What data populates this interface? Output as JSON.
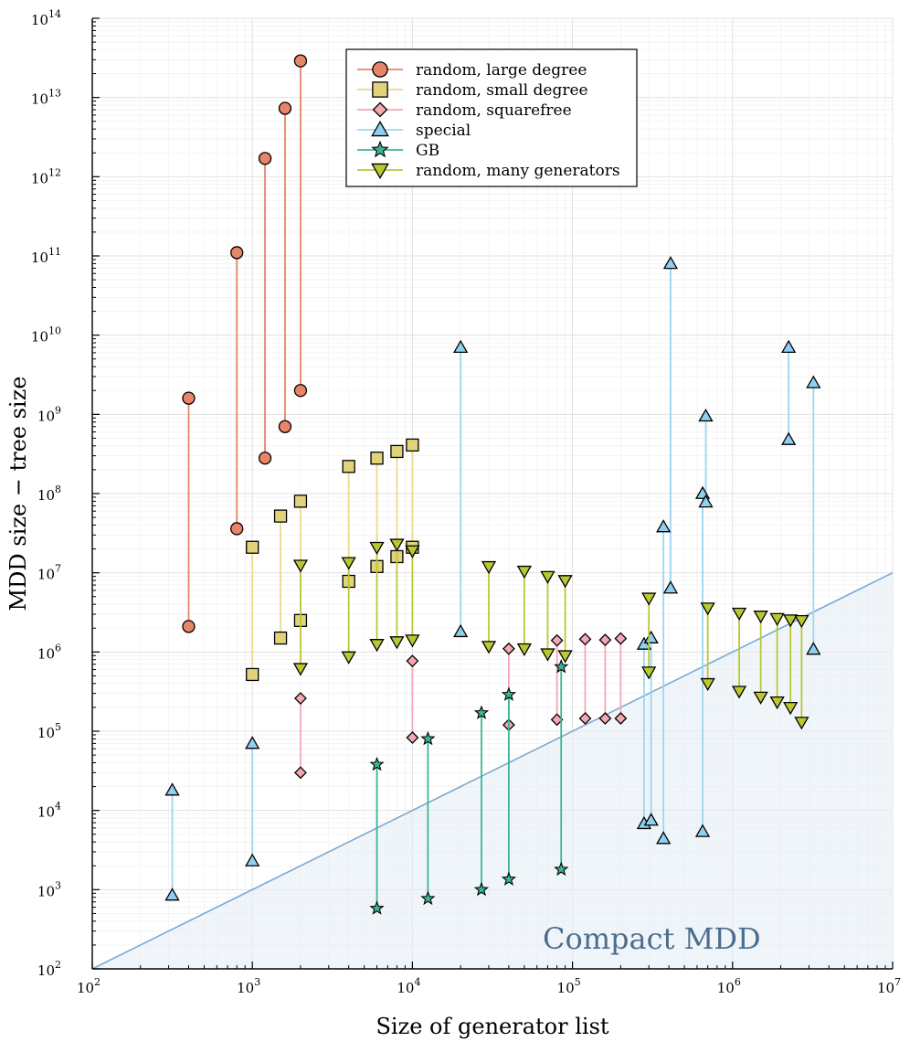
{
  "chart_data": {
    "type": "scatter",
    "xlabel": "Size of generator list",
    "ylabel": "MDD size − tree size",
    "x_scale": "log10",
    "y_scale": "log10",
    "xlim": [
      100,
      10000000
    ],
    "ylim": [
      100,
      100000000000000
    ],
    "grid": true,
    "legend_position": "top-center",
    "x_ticks": [
      {
        "base": "10",
        "exp": "2"
      },
      {
        "base": "10",
        "exp": "3"
      },
      {
        "base": "10",
        "exp": "4"
      },
      {
        "base": "10",
        "exp": "5"
      },
      {
        "base": "10",
        "exp": "6"
      },
      {
        "base": "10",
        "exp": "7"
      }
    ],
    "y_ticks": [
      {
        "base": "10",
        "exp": "2"
      },
      {
        "base": "10",
        "exp": "3"
      },
      {
        "base": "10",
        "exp": "4"
      },
      {
        "base": "10",
        "exp": "5"
      },
      {
        "base": "10",
        "exp": "6"
      },
      {
        "base": "10",
        "exp": "7"
      },
      {
        "base": "10",
        "exp": "8"
      },
      {
        "base": "10",
        "exp": "9"
      },
      {
        "base": "10",
        "exp": "10"
      },
      {
        "base": "10",
        "exp": "11"
      },
      {
        "base": "10",
        "exp": "12"
      },
      {
        "base": "10",
        "exp": "13"
      },
      {
        "base": "10",
        "exp": "14"
      }
    ],
    "reference_line": {
      "description": "y = x",
      "color": "#7aaad2"
    },
    "region_label": {
      "text": "Compact MDD",
      "color": "#4c6e8e"
    },
    "series": [
      {
        "name": "random, large degree",
        "marker": "circle",
        "color": "#e88468",
        "line_color": "#e88468",
        "points": [
          {
            "x": 400,
            "y_top": 1600000000,
            "y_bottom": 2100000
          },
          {
            "x": 800,
            "y_top": 110000000000,
            "y_bottom": 36000000
          },
          {
            "x": 1200,
            "y_top": 1700000000000,
            "y_bottom": 280000000
          },
          {
            "x": 1600,
            "y_top": 7300000000000,
            "y_bottom": 700000000
          },
          {
            "x": 2000,
            "y_top": 29000000000000,
            "y_bottom": 2000000000
          }
        ]
      },
      {
        "name": "random, small degree",
        "marker": "square",
        "color": "#e2d27a",
        "line_color": "#e8dc8c",
        "points": [
          {
            "x": 1000,
            "y_top": 21000000,
            "y_bottom": 520000
          },
          {
            "x": 1500,
            "y_top": 52000000,
            "y_bottom": 1500000
          },
          {
            "x": 2000,
            "y_top": 80000000,
            "y_bottom": 2500000
          },
          {
            "x": 4000,
            "y_top": 220000000,
            "y_bottom": 7800000
          },
          {
            "x": 6000,
            "y_top": 280000000,
            "y_bottom": 12000000
          },
          {
            "x": 8000,
            "y_top": 340000000,
            "y_bottom": 16000000
          },
          {
            "x": 10000,
            "y_top": 410000000,
            "y_bottom": 21000000
          }
        ]
      },
      {
        "name": "random, squarefree",
        "marker": "diamond",
        "color": "#f4a8b4",
        "line_color": "#f4a8b4",
        "points": [
          {
            "x": 2000,
            "y_top": 260000,
            "y_bottom": 30000
          },
          {
            "x": 10000,
            "y_top": 770000,
            "y_bottom": 83000
          },
          {
            "x": 40000,
            "y_top": 1100000,
            "y_bottom": 120000
          },
          {
            "x": 80000,
            "y_top": 1400000,
            "y_bottom": 140000
          },
          {
            "x": 120000,
            "y_top": 1450000,
            "y_bottom": 145000
          },
          {
            "x": 160000,
            "y_top": 1420000,
            "y_bottom": 145000
          },
          {
            "x": 200000,
            "y_top": 1480000,
            "y_bottom": 145000
          }
        ]
      },
      {
        "name": "special",
        "marker": "triangle-up",
        "color": "#8fd0f0",
        "line_color": "#9dd6f0",
        "points": [
          {
            "x": 316,
            "y_top": 18000,
            "y_bottom": 850
          },
          {
            "x": 1000,
            "y_top": 70000,
            "y_bottom": 2300
          },
          {
            "x": 20000,
            "y_top": 7000000000,
            "y_bottom": 1800000
          },
          {
            "x": 280000,
            "y_top": 1250000,
            "y_bottom": 6800
          },
          {
            "x": 310000,
            "y_top": 1500000,
            "y_bottom": 7500
          },
          {
            "x": 370000,
            "y_top": 38000000,
            "y_bottom": 4400
          },
          {
            "x": 410000,
            "y_top": 80000000000,
            "y_bottom": 6400000
          },
          {
            "x": 650000,
            "y_top": 100000000,
            "y_bottom": 5400
          },
          {
            "x": 680000,
            "y_top": 950000000,
            "y_bottom": 78000000
          },
          {
            "x": 2240000,
            "y_top": 7000000000,
            "y_bottom": 480000000
          },
          {
            "x": 3200000,
            "y_top": 2500000000,
            "y_bottom": 1080000
          }
        ]
      },
      {
        "name": "GB",
        "marker": "star",
        "color": "#3bb596",
        "line_color": "#3bb596",
        "points": [
          {
            "x": 6000,
            "y_top": 38000,
            "y_bottom": 580
          },
          {
            "x": 12500,
            "y_top": 80000,
            "y_bottom": 770
          },
          {
            "x": 27000,
            "y_top": 170000,
            "y_bottom": 1000
          },
          {
            "x": 40000,
            "y_top": 290000,
            "y_bottom": 1350
          },
          {
            "x": 85000,
            "y_top": 650000,
            "y_bottom": 1800
          }
        ]
      },
      {
        "name": "random, many generators",
        "marker": "triangle-down",
        "color": "#bac832",
        "line_color": "#bac832",
        "points": [
          {
            "x": 2000,
            "y_top": 12500000,
            "y_bottom": 620000
          },
          {
            "x": 4000,
            "y_top": 13500000,
            "y_bottom": 870000
          },
          {
            "x": 6000,
            "y_top": 21000000,
            "y_bottom": 1250000
          },
          {
            "x": 8000,
            "y_top": 23000000,
            "y_bottom": 1350000
          },
          {
            "x": 10000,
            "y_top": 19000000,
            "y_bottom": 1420000
          },
          {
            "x": 30000,
            "y_top": 12000000,
            "y_bottom": 1180000
          },
          {
            "x": 50000,
            "y_top": 10500000,
            "y_bottom": 1100000
          },
          {
            "x": 70000,
            "y_top": 9000000,
            "y_bottom": 950000
          },
          {
            "x": 90000,
            "y_top": 8000000,
            "y_bottom": 900000
          },
          {
            "x": 300000,
            "y_top": 4800000,
            "y_bottom": 560000
          },
          {
            "x": 700000,
            "y_top": 3600000,
            "y_bottom": 400000
          },
          {
            "x": 1100000,
            "y_top": 3100000,
            "y_bottom": 320000
          },
          {
            "x": 1500000,
            "y_top": 2850000,
            "y_bottom": 270000
          },
          {
            "x": 1900000,
            "y_top": 2650000,
            "y_bottom": 235000
          },
          {
            "x": 2300000,
            "y_top": 2550000,
            "y_bottom": 200000
          },
          {
            "x": 2700000,
            "y_top": 2500000,
            "y_bottom": 130000
          }
        ]
      }
    ]
  }
}
